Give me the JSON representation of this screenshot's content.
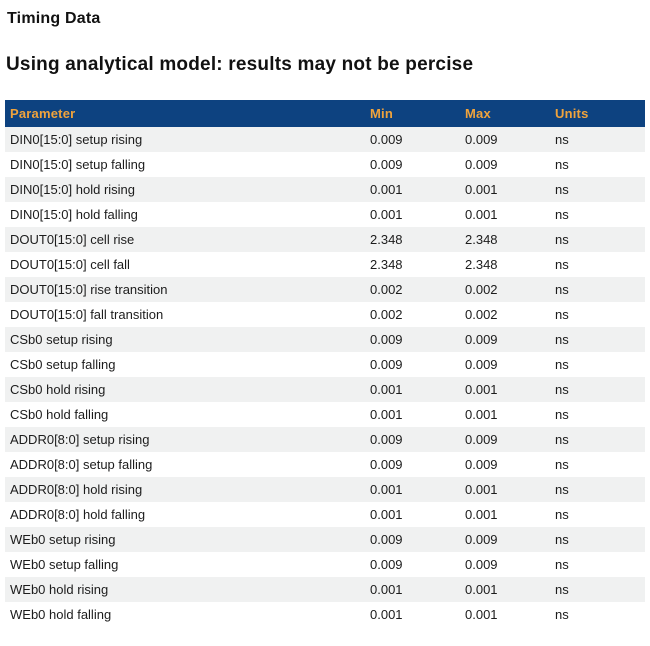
{
  "page": {
    "title": "Timing Data",
    "subtitle": "Using analytical model: results may not be percise"
  },
  "colors": {
    "table_header_bg": "#0d4280",
    "table_header_text": "#f0a33c",
    "row_stripe_bg": "#f0f1f1",
    "row_text": "#1c1c1c"
  },
  "table": {
    "columns": [
      "Parameter",
      "Min",
      "Max",
      "Units"
    ],
    "rows": [
      {
        "parameter": "DIN0[15:0] setup rising",
        "min": "0.009",
        "max": "0.009",
        "units": "ns"
      },
      {
        "parameter": "DIN0[15:0] setup falling",
        "min": "0.009",
        "max": "0.009",
        "units": "ns"
      },
      {
        "parameter": "DIN0[15:0] hold rising",
        "min": "0.001",
        "max": "0.001",
        "units": "ns"
      },
      {
        "parameter": "DIN0[15:0] hold falling",
        "min": "0.001",
        "max": "0.001",
        "units": "ns"
      },
      {
        "parameter": "DOUT0[15:0] cell rise",
        "min": "2.348",
        "max": "2.348",
        "units": "ns"
      },
      {
        "parameter": "DOUT0[15:0] cell fall",
        "min": "2.348",
        "max": "2.348",
        "units": "ns"
      },
      {
        "parameter": "DOUT0[15:0] rise transition",
        "min": "0.002",
        "max": "0.002",
        "units": "ns"
      },
      {
        "parameter": "DOUT0[15:0] fall transition",
        "min": "0.002",
        "max": "0.002",
        "units": "ns"
      },
      {
        "parameter": "CSb0 setup rising",
        "min": "0.009",
        "max": "0.009",
        "units": "ns"
      },
      {
        "parameter": "CSb0 setup falling",
        "min": "0.009",
        "max": "0.009",
        "units": "ns"
      },
      {
        "parameter": "CSb0 hold rising",
        "min": "0.001",
        "max": "0.001",
        "units": "ns"
      },
      {
        "parameter": "CSb0 hold falling",
        "min": "0.001",
        "max": "0.001",
        "units": "ns"
      },
      {
        "parameter": "ADDR0[8:0] setup rising",
        "min": "0.009",
        "max": "0.009",
        "units": "ns"
      },
      {
        "parameter": "ADDR0[8:0] setup falling",
        "min": "0.009",
        "max": "0.009",
        "units": "ns"
      },
      {
        "parameter": "ADDR0[8:0] hold rising",
        "min": "0.001",
        "max": "0.001",
        "units": "ns"
      },
      {
        "parameter": "ADDR0[8:0] hold falling",
        "min": "0.001",
        "max": "0.001",
        "units": "ns"
      },
      {
        "parameter": "WEb0 setup rising",
        "min": "0.009",
        "max": "0.009",
        "units": "ns"
      },
      {
        "parameter": "WEb0 setup falling",
        "min": "0.009",
        "max": "0.009",
        "units": "ns"
      },
      {
        "parameter": "WEb0 hold rising",
        "min": "0.001",
        "max": "0.001",
        "units": "ns"
      },
      {
        "parameter": "WEb0 hold falling",
        "min": "0.001",
        "max": "0.001",
        "units": "ns"
      }
    ]
  }
}
